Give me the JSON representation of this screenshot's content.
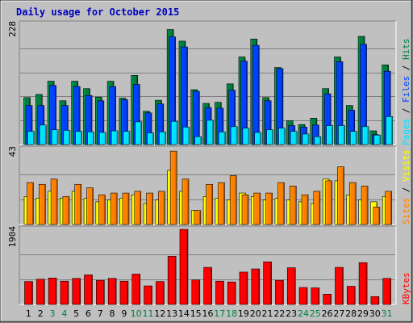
{
  "title": "Daily usage for October 2015",
  "colors": {
    "background": "#c0c0c0",
    "plot": "#c0c0c0",
    "title": "#0000c0",
    "hits": "#008040",
    "files": "#0040ff",
    "pages": "#00e0ff",
    "visits": "#ffff00",
    "sites": "#ff8000",
    "kbytes": "#ff0000",
    "day_label": "#000000",
    "weekend_label": "#008040"
  },
  "chart_data": [
    {
      "type": "bar",
      "name": "hits-files-pages",
      "y_max_label": "228",
      "right_labels": {
        "pages": "Pages",
        "files": "Files",
        "hits": "Hits",
        "sep": " / "
      },
      "ylim": [
        0,
        228
      ],
      "grid": true,
      "categories": [
        "1",
        "2",
        "3",
        "4",
        "5",
        "6",
        "7",
        "8",
        "9",
        "10",
        "11",
        "12",
        "13",
        "14",
        "15",
        "16",
        "17",
        "18",
        "19",
        "20",
        "21",
        "22",
        "23",
        "24",
        "25",
        "26",
        "27",
        "28",
        "29",
        "30",
        "31"
      ],
      "series": [
        {
          "name": "Hits",
          "values": [
            89,
            95,
            120,
            83,
            120,
            106,
            90,
            120,
            88,
            131,
            63,
            84,
            218,
            196,
            104,
            78,
            80,
            115,
            166,
            200,
            89,
            146,
            45,
            38,
            50,
            106,
            166,
            74,
            205,
            26,
            151
          ]
        },
        {
          "name": "Files",
          "values": [
            74,
            74,
            112,
            74,
            110,
            93,
            83,
            110,
            85,
            114,
            60,
            77,
            204,
            185,
            101,
            70,
            69,
            103,
            158,
            188,
            83,
            144,
            36,
            33,
            37,
            96,
            157,
            65,
            190,
            19,
            139
          ]
        },
        {
          "name": "Pages",
          "values": [
            25,
            37,
            28,
            27,
            25,
            24,
            23,
            26,
            25,
            43,
            22,
            24,
            44,
            33,
            15,
            46,
            24,
            34,
            31,
            23,
            28,
            31,
            25,
            20,
            15,
            36,
            36,
            25,
            34,
            18,
            53
          ]
        }
      ]
    },
    {
      "type": "bar",
      "name": "visits-sites",
      "y_max_label": "43",
      "right_labels": {
        "sites": "Sites",
        "visits": "Visits",
        "sep": " / "
      },
      "ylim": [
        0,
        43
      ],
      "grid": true,
      "categories": [
        "1",
        "2",
        "3",
        "4",
        "5",
        "6",
        "7",
        "8",
        "9",
        "10",
        "11",
        "12",
        "13",
        "14",
        "15",
        "16",
        "17",
        "18",
        "19",
        "20",
        "21",
        "22",
        "23",
        "24",
        "25",
        "26",
        "27",
        "28",
        "29",
        "30",
        "31"
      ],
      "series": [
        {
          "name": "Visits",
          "values": [
            16,
            15,
            19,
            15,
            19,
            15,
            13,
            14,
            15,
            17,
            12,
            14,
            31,
            19,
            8,
            16,
            15,
            14,
            18,
            16,
            14,
            15,
            14,
            13,
            12,
            26,
            25,
            17,
            14,
            13,
            16
          ]
        },
        {
          "name": "Sites",
          "values": [
            24,
            23,
            26,
            16,
            23,
            21,
            17,
            18,
            18,
            19,
            18,
            19,
            42,
            26,
            8,
            23,
            24,
            28,
            17,
            18,
            18,
            24,
            22,
            17,
            19,
            25,
            33,
            24,
            22,
            10,
            19
          ]
        }
      ]
    },
    {
      "type": "bar",
      "name": "kbytes",
      "y_max_label": "1904",
      "right_labels": {
        "kbytes": "KBytes"
      },
      "ylim": [
        0,
        1904
      ],
      "grid": true,
      "categories": [
        "1",
        "2",
        "3",
        "4",
        "5",
        "6",
        "7",
        "8",
        "9",
        "10",
        "11",
        "12",
        "13",
        "14",
        "15",
        "16",
        "17",
        "18",
        "19",
        "20",
        "21",
        "22",
        "23",
        "24",
        "25",
        "26",
        "27",
        "28",
        "29",
        "30",
        "31"
      ],
      "series": [
        {
          "name": "KBytes",
          "values": [
            580,
            640,
            670,
            590,
            660,
            750,
            610,
            660,
            590,
            770,
            470,
            580,
            1220,
            1904,
            620,
            940,
            590,
            570,
            820,
            900,
            1080,
            610,
            930,
            430,
            420,
            260,
            940,
            460,
            1060,
            200,
            660
          ]
        }
      ]
    }
  ],
  "days": [
    {
      "label": "1",
      "weekend": false
    },
    {
      "label": "2",
      "weekend": false
    },
    {
      "label": "3",
      "weekend": true
    },
    {
      "label": "4",
      "weekend": true
    },
    {
      "label": "5",
      "weekend": false
    },
    {
      "label": "6",
      "weekend": false
    },
    {
      "label": "7",
      "weekend": false
    },
    {
      "label": "8",
      "weekend": false
    },
    {
      "label": "9",
      "weekend": false
    },
    {
      "label": "10",
      "weekend": true
    },
    {
      "label": "11",
      "weekend": true
    },
    {
      "label": "12",
      "weekend": false
    },
    {
      "label": "13",
      "weekend": false
    },
    {
      "label": "14",
      "weekend": false
    },
    {
      "label": "15",
      "weekend": false
    },
    {
      "label": "16",
      "weekend": false
    },
    {
      "label": "17",
      "weekend": true
    },
    {
      "label": "18",
      "weekend": true
    },
    {
      "label": "19",
      "weekend": false
    },
    {
      "label": "20",
      "weekend": false
    },
    {
      "label": "21",
      "weekend": false
    },
    {
      "label": "22",
      "weekend": false
    },
    {
      "label": "23",
      "weekend": false
    },
    {
      "label": "24",
      "weekend": true
    },
    {
      "label": "25",
      "weekend": true
    },
    {
      "label": "26",
      "weekend": false
    },
    {
      "label": "27",
      "weekend": false
    },
    {
      "label": "28",
      "weekend": false
    },
    {
      "label": "29",
      "weekend": false
    },
    {
      "label": "30",
      "weekend": false
    },
    {
      "label": "31",
      "weekend": true
    }
  ]
}
